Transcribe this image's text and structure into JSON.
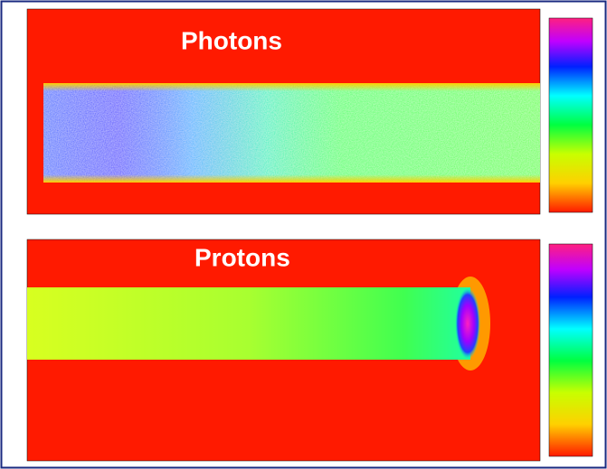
{
  "panels": [
    {
      "label": "Photons"
    },
    {
      "label": "Protons"
    }
  ]
}
